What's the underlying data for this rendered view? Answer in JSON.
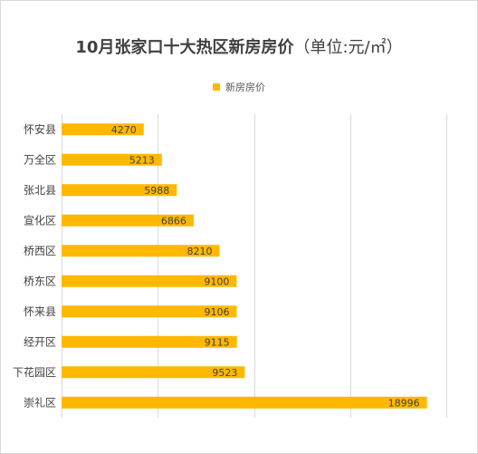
{
  "chart_data": {
    "type": "bar",
    "orientation": "horizontal",
    "title": "10月张家口十大热区新房房价",
    "subtitle": "（单位:元/㎡）",
    "categories": [
      "怀安县",
      "万全区",
      "张北县",
      "宣化区",
      "桥西区",
      "桥东区",
      "怀来县",
      "经开区",
      "下花园区",
      "崇礼区"
    ],
    "series": [
      {
        "name": "新房房价",
        "values": [
          4270,
          5213,
          5988,
          6866,
          8210,
          9100,
          9106,
          9115,
          9523,
          18996
        ]
      }
    ],
    "xlim": [
      0,
      20000
    ],
    "xticks": [
      0,
      5000,
      10000,
      15000,
      20000
    ],
    "grid": true,
    "legend": "top",
    "color": "#FFB800"
  }
}
